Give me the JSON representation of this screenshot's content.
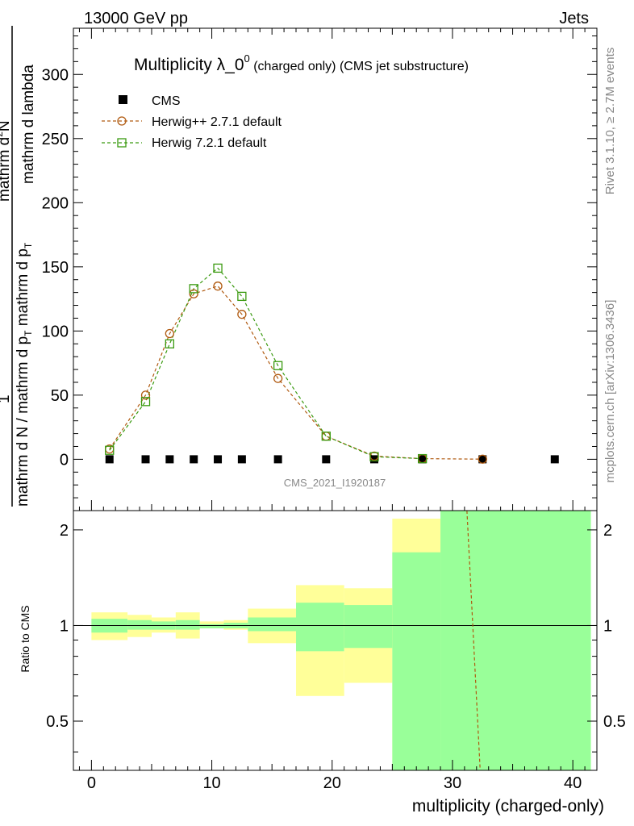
{
  "header": {
    "left": "13000 GeV pp",
    "right": "Jets"
  },
  "side_labels": {
    "top": "Rivet 3.1.10, ≥ 2.7M events",
    "bottom": "mcplots.cern.ch [arXiv:1306.3436]"
  },
  "chart_data": {
    "type": "line",
    "title": {
      "main": "Multiplicity λ_0",
      "sup": "0",
      "small": " (charged only) (CMS jet substructure)"
    },
    "watermark": "CMS_2021_I1920187",
    "xlabel": "multiplicity (charged-only)",
    "ylabel": {
      "one": "1",
      "denom": "mathrm d N / mathrm d p",
      "denom_sub": "T",
      "denom2": " mathrm d p",
      "denom2_sub": "T",
      "num": "mathrm d",
      "num_sup": "2",
      "num2": "N",
      "tail": " mathrm d lambda"
    },
    "ratio_ylabel": "Ratio to CMS",
    "xlim": [
      -1.5,
      42
    ],
    "ylim": [
      -40,
      336
    ],
    "ratio_ylim": [
      0.35,
      2.3
    ],
    "x_ticks": [
      "0",
      "10",
      "20",
      "30",
      "40"
    ],
    "y_ticks": [
      "0",
      "50",
      "100",
      "150",
      "200",
      "250",
      "300"
    ],
    "ratio_ticks": [
      "0.5",
      "1",
      "2"
    ],
    "legend": [
      "CMS",
      "Herwig++ 2.7.1 default",
      "Herwig 7.2.1 default"
    ],
    "colors": {
      "cms": "#000000",
      "herwigpp": "#b05a10",
      "herwig7": "#3a9a10",
      "band_inner": "#99ff99",
      "band_outer": "#ffff99"
    },
    "series": [
      {
        "name": "CMS",
        "x": [
          1.5,
          4.5,
          6.5,
          8.5,
          10.5,
          12.5,
          15.5,
          19.5,
          23.5,
          27.5,
          32.5,
          38.5
        ],
        "values": [
          0,
          0,
          0,
          0,
          0,
          0,
          0,
          0,
          0,
          0,
          0,
          0
        ]
      },
      {
        "name": "Herwig++ 2.7.1 default",
        "x": [
          1.5,
          4.5,
          6.5,
          8.5,
          10.5,
          12.5,
          15.5,
          19.5,
          23.5,
          27.5,
          32.5
        ],
        "values": [
          8,
          50,
          98,
          129,
          135,
          113,
          63,
          18,
          2.5,
          0.5,
          0.1
        ]
      },
      {
        "name": "Herwig 7.2.1 default",
        "x": [
          1.5,
          4.5,
          6.5,
          8.5,
          10.5,
          12.5,
          15.5,
          19.5,
          23.5,
          27.5
        ],
        "values": [
          7,
          45,
          90,
          133,
          149,
          127,
          73,
          18,
          2,
          0.5
        ]
      }
    ],
    "ratio_bands": [
      {
        "x0": 0,
        "x1": 3,
        "inner": [
          0.95,
          1.05
        ],
        "outer": [
          0.9,
          1.1
        ]
      },
      {
        "x0": 3,
        "x1": 5,
        "inner": [
          0.97,
          1.04
        ],
        "outer": [
          0.92,
          1.08
        ]
      },
      {
        "x0": 5,
        "x1": 7,
        "inner": [
          0.97,
          1.03
        ],
        "outer": [
          0.95,
          1.06
        ]
      },
      {
        "x0": 7,
        "x1": 9,
        "inner": [
          0.97,
          1.04
        ],
        "outer": [
          0.91,
          1.1
        ]
      },
      {
        "x0": 9,
        "x1": 11,
        "inner": [
          0.98,
          1.01
        ],
        "outer": [
          0.98,
          1.03
        ]
      },
      {
        "x0": 11,
        "x1": 13,
        "inner": [
          0.98,
          1.02
        ],
        "outer": [
          0.97,
          1.04
        ]
      },
      {
        "x0": 13,
        "x1": 17,
        "inner": [
          0.96,
          1.06
        ],
        "outer": [
          0.88,
          1.13
        ]
      },
      {
        "x0": 17,
        "x1": 21,
        "inner": [
          0.83,
          1.18
        ],
        "outer": [
          0.6,
          1.34
        ]
      },
      {
        "x0": 21,
        "x1": 25,
        "inner": [
          0.85,
          1.16
        ],
        "outer": [
          0.66,
          1.31
        ]
      },
      {
        "x0": 25,
        "x1": 29,
        "inner": [
          0.35,
          1.7
        ],
        "outer": [
          0.35,
          2.17
        ]
      },
      {
        "x0": 29,
        "x1": 41.5,
        "inner": [
          0.35,
          2.3
        ],
        "outer": [
          0.35,
          2.3
        ]
      }
    ],
    "ratio_line": {
      "name": "Herwig++ 2.7.1 default",
      "x": [
        31.2,
        32.3
      ],
      "values": [
        2.3,
        0.35
      ]
    }
  }
}
